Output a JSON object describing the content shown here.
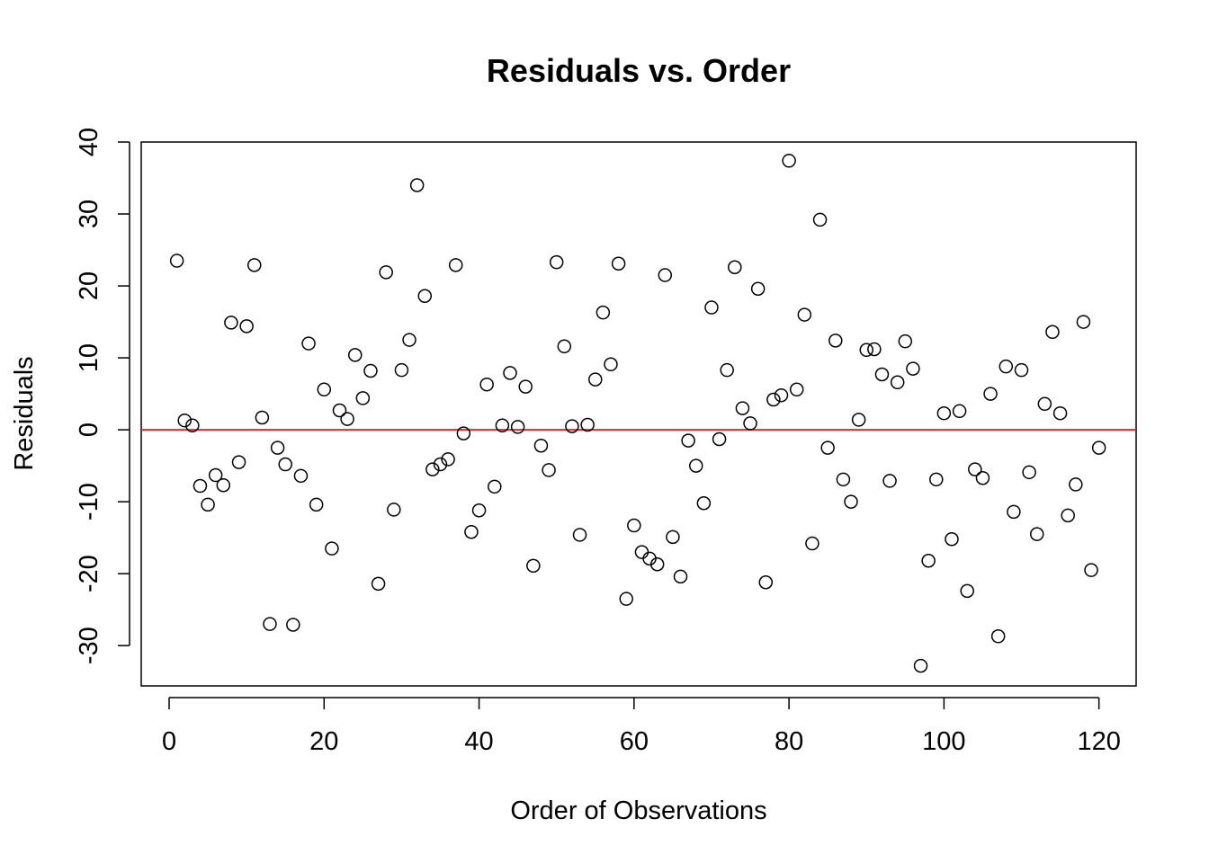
{
  "chart_data": {
    "type": "scatter",
    "title": "Residuals vs. Order",
    "xlabel": "Order of Observations",
    "ylabel": "Residuals",
    "xlim": [
      -3.6,
      124.8
    ],
    "ylim": [
      -35.6,
      40.0
    ],
    "xticks": [
      0,
      20,
      40,
      60,
      80,
      100,
      120
    ],
    "yticks": [
      -30,
      -20,
      -10,
      0,
      10,
      20,
      30,
      40
    ],
    "grid": false,
    "legend": "none",
    "reference_line": {
      "y": 0,
      "color": "#e8262b"
    },
    "point_color": "#000000",
    "x": [
      1,
      2,
      3,
      4,
      5,
      6,
      7,
      8,
      9,
      10,
      11,
      12,
      13,
      14,
      15,
      16,
      17,
      18,
      19,
      20,
      21,
      22,
      23,
      24,
      25,
      26,
      27,
      28,
      29,
      30,
      31,
      32,
      33,
      34,
      35,
      36,
      37,
      38,
      39,
      40,
      41,
      42,
      43,
      44,
      45,
      46,
      47,
      48,
      49,
      50,
      51,
      52,
      53,
      54,
      55,
      56,
      57,
      58,
      59,
      60,
      61,
      62,
      63,
      64,
      65,
      66,
      67,
      68,
      69,
      70,
      71,
      72,
      73,
      74,
      75,
      76,
      77,
      78,
      79,
      80,
      81,
      82,
      83,
      84,
      85,
      86,
      87,
      88,
      89,
      90,
      91,
      92,
      93,
      94,
      95,
      96,
      97,
      98,
      99,
      100,
      101,
      102,
      103,
      104,
      105,
      106,
      107,
      108,
      109,
      110,
      111,
      112,
      113,
      114,
      115,
      116,
      117,
      118,
      119,
      120
    ],
    "y": [
      23.5,
      1.3,
      0.6,
      -7.8,
      -10.4,
      -6.3,
      -7.7,
      14.9,
      -4.5,
      14.4,
      22.9,
      1.7,
      -27.0,
      -2.5,
      -4.8,
      -27.1,
      -6.4,
      12.0,
      -10.4,
      5.6,
      -16.5,
      2.7,
      1.5,
      10.4,
      4.4,
      8.2,
      -21.4,
      21.9,
      -11.1,
      8.3,
      12.5,
      34.0,
      18.6,
      -5.5,
      -4.8,
      -4.1,
      22.9,
      -0.5,
      -14.2,
      -11.2,
      6.3,
      -7.9,
      0.6,
      7.9,
      0.4,
      6.0,
      -18.9,
      -2.2,
      -5.6,
      23.3,
      11.6,
      0.5,
      -14.6,
      0.7,
      7.0,
      16.3,
      9.1,
      23.1,
      -23.5,
      -13.3,
      -17.0,
      -17.9,
      -18.7,
      21.5,
      -14.9,
      -20.4,
      -1.5,
      -5.0,
      -10.2,
      17.0,
      -1.3,
      8.3,
      22.6,
      3.0,
      0.9,
      19.6,
      -21.2,
      4.2,
      4.8,
      37.4,
      5.6,
      16.0,
      -15.8,
      29.2,
      -2.5,
      12.4,
      -6.9,
      -10.0,
      1.4,
      11.1,
      11.2,
      7.7,
      -7.1,
      6.6,
      12.3,
      8.5,
      -32.8,
      -18.2,
      -6.9,
      2.3,
      -15.2,
      2.6,
      -22.4,
      -5.5,
      -6.7,
      5.0,
      -28.7,
      8.8,
      -11.4,
      8.3,
      -5.9,
      -14.5,
      3.6,
      13.6,
      2.3,
      -11.9,
      -7.6,
      15.0,
      -19.5,
      -2.5
    ]
  }
}
